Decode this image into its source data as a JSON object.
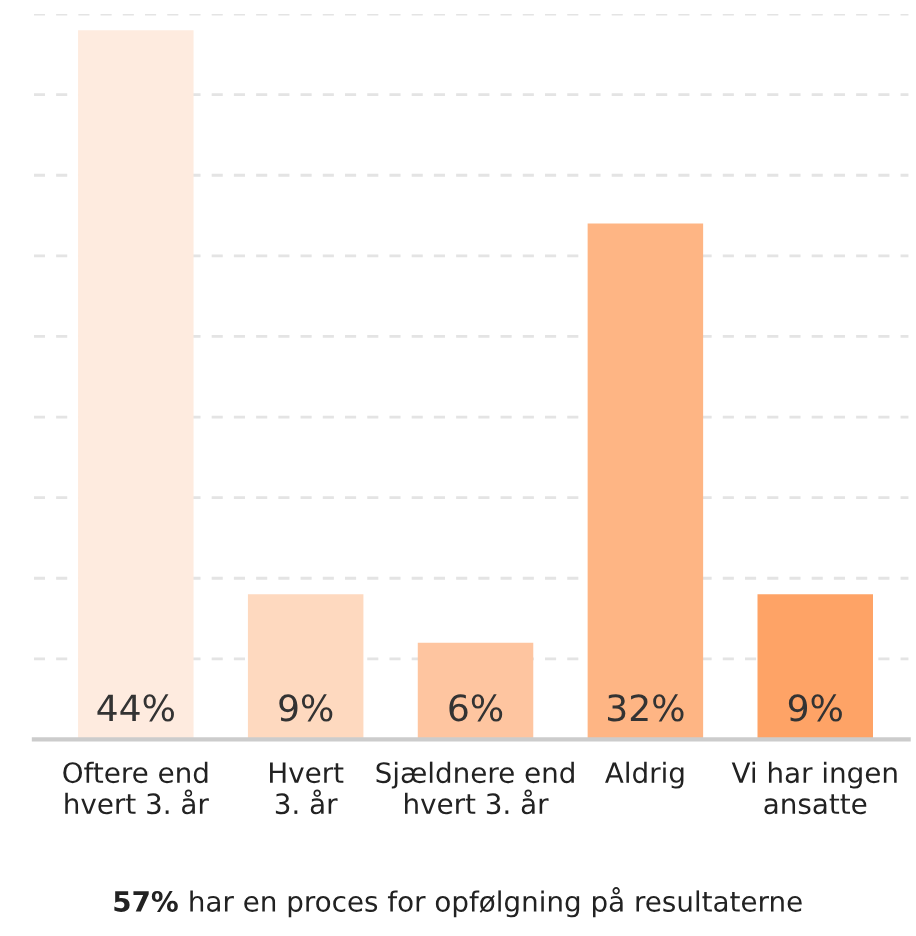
{
  "chart_data": {
    "type": "bar",
    "categories": [
      "Oftere end\nhvert 3. år",
      "Hvert\n3. år",
      "Sjældnere end\nhvert 3. år",
      "Aldrig",
      "Vi har ingen\nansatte"
    ],
    "values": [
      44,
      9,
      6,
      32,
      9
    ],
    "colors": [
      "#feebdf",
      "#fed9bf",
      "#fec5a0",
      "#feb584",
      "#fea366"
    ],
    "value_labels": [
      "44%",
      "9%",
      "6%",
      "32%",
      "9%"
    ],
    "ylim": [
      0,
      45
    ],
    "yticks": [
      {
        "value": 0,
        "label": null
      },
      {
        "value": 5,
        "label": null
      },
      {
        "value": 10,
        "label": null
      },
      {
        "value": 15,
        "label": null
      },
      {
        "value": 20,
        "label": null
      },
      {
        "value": 25,
        "label": null
      },
      {
        "value": 30,
        "label": null
      },
      {
        "value": 35,
        "label": null
      },
      {
        "value": 40,
        "label": null
      },
      {
        "value": 45,
        "label": null
      }
    ],
    "tick_labels": "x",
    "grid": "y",
    "line_style": "dashed",
    "annotations": [
      "57% har en proces for opfølgning på resultaterne"
    ]
  }
}
